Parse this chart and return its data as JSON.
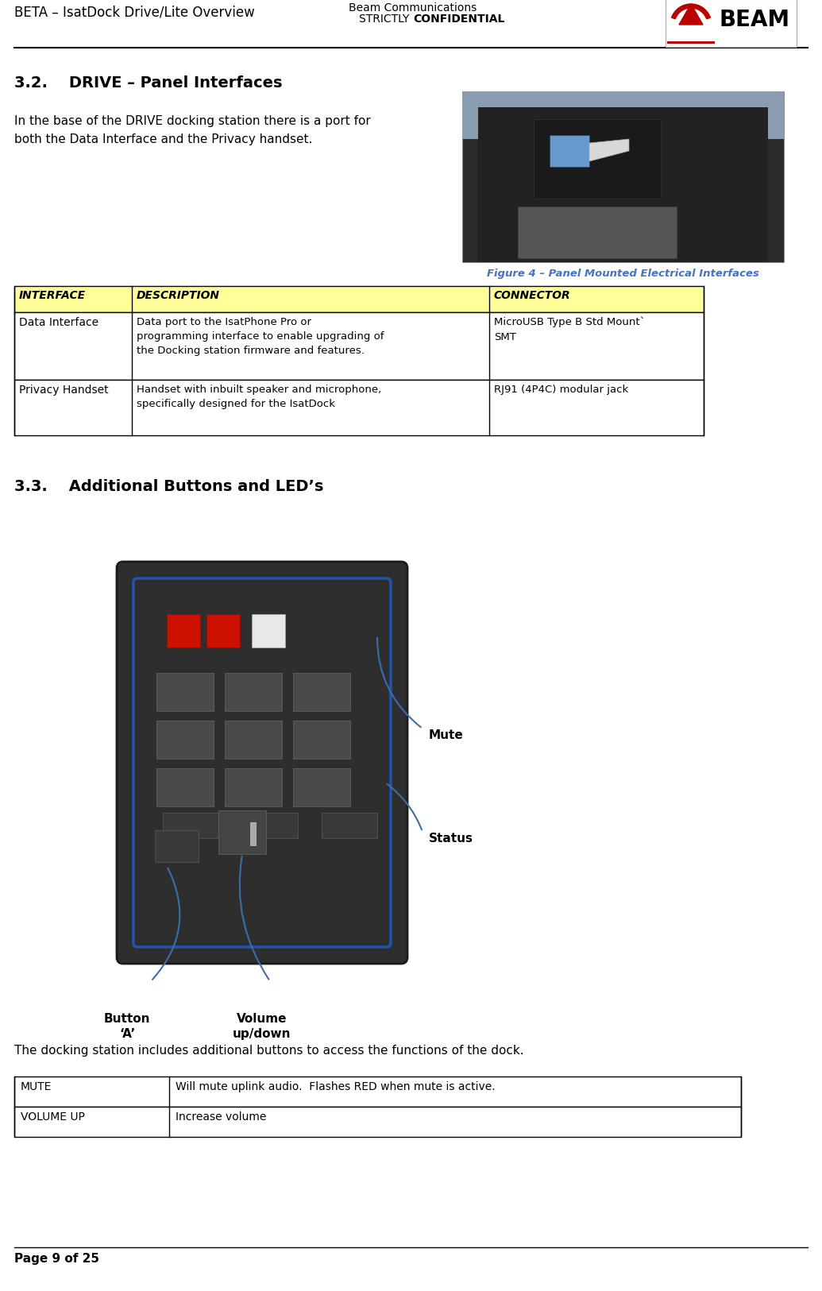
{
  "page_title_left": "BETA – IsatDock Drive/Lite Overview",
  "page_footer": "Page 9 of 25",
  "section_32_title": "3.2.    DRIVE – Panel Interfaces",
  "section_32_body": "In the base of the DRIVE docking station there is a port for\nboth the Data Interface and the Privacy handset.",
  "figure_caption": "Figure 4 – Panel Mounted Electrical Interfaces",
  "table1_headers": [
    "INTERFACE",
    "DESCRIPTION",
    "CONNECTOR"
  ],
  "table1_rows": [
    [
      "Data Interface",
      "Data port to the IsatPhone Pro or\nprogramming interface to enable upgrading of\nthe Docking station firmware and features.",
      "MicroUSB Type B Std Mount`\nSMT"
    ],
    [
      "Privacy Handset",
      "Handset with inbuilt speaker and microphone,\nspecifically designed for the IsatDock",
      "RJ91 (4P4C) modular jack"
    ]
  ],
  "section_33_title": "3.3.    Additional Buttons and LED’s",
  "section_33_body": "The docking station includes additional buttons to access the functions of the dock.",
  "table2_rows": [
    [
      "MUTE",
      "Will mute uplink audio.  Flashes RED when mute is active."
    ],
    [
      "VOLUME UP",
      "Increase volume"
    ]
  ],
  "header_yellow": "#ffff99",
  "figure_caption_color": "#4472c4",
  "beam_red": "#cc0000",
  "blue_line_color": "#3a6ea8",
  "label_mute": "Mute",
  "label_status": "Status",
  "label_volume": "Volume\nup/down",
  "label_button_a": "Button\n‘A’"
}
